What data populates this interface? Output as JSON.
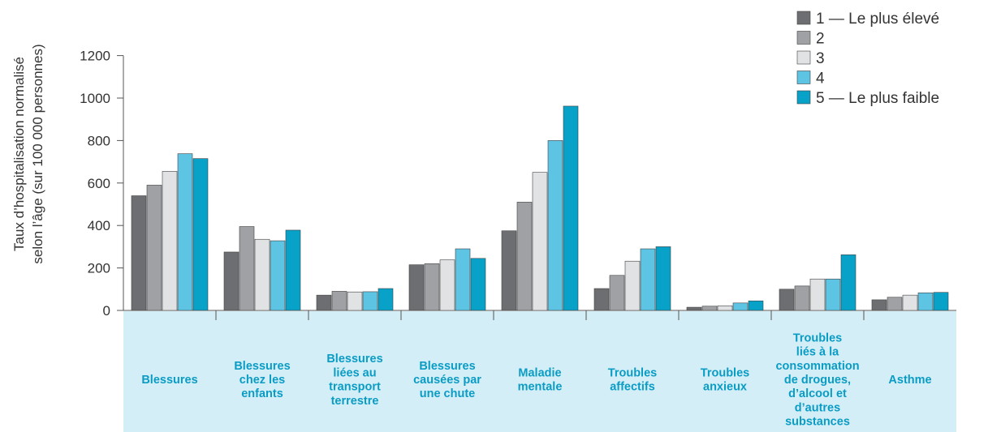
{
  "chart_data": {
    "type": "bar",
    "ylabel_line1": "Taux d’hospitalisation normalisé",
    "ylabel_line2": "selon l’âge (sur 100 000 personnes)",
    "ylim": [
      0,
      1200
    ],
    "yticks": [
      0,
      200,
      400,
      600,
      800,
      1000,
      1200
    ],
    "legend_position": "top-right",
    "categories": [
      [
        "Blessures"
      ],
      [
        "Blessures",
        "chez les",
        "enfants"
      ],
      [
        "Blessures",
        "liées au",
        "transport",
        "terrestre"
      ],
      [
        "Blessures",
        "causées par",
        "une chute"
      ],
      [
        "Maladie",
        "mentale"
      ],
      [
        "Troubles",
        "affectifs"
      ],
      [
        "Troubles",
        "anxieux"
      ],
      [
        "Troubles",
        "liés à la",
        "consommation",
        "de drogues,",
        "d’alcool et",
        "d’autres",
        "substances"
      ],
      [
        "Asthme"
      ]
    ],
    "series": [
      {
        "name": "1 — Le plus élevé",
        "color": "#6d6e71",
        "values": [
          540,
          275,
          72,
          215,
          375,
          103,
          15,
          100,
          50
        ]
      },
      {
        "name": "2",
        "color": "#a0a1a4",
        "values": [
          590,
          395,
          90,
          220,
          510,
          165,
          20,
          115,
          62
        ]
      },
      {
        "name": "3",
        "color": "#e1e2e3",
        "values": [
          655,
          335,
          87,
          238,
          650,
          232,
          22,
          148,
          72
        ]
      },
      {
        "name": "4",
        "color": "#5dc4e3",
        "values": [
          738,
          328,
          88,
          290,
          800,
          290,
          35,
          148,
          83
        ]
      },
      {
        "name": "5 — Le plus faible",
        "color": "#08a2c9",
        "values": [
          715,
          378,
          103,
          245,
          962,
          300,
          45,
          262,
          85
        ]
      }
    ],
    "category_band_color": "#d4eef7",
    "category_text_color": "#0a9cc4"
  }
}
